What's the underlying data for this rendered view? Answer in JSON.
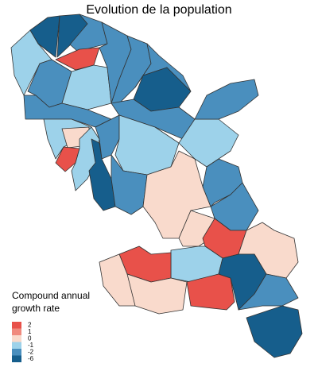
{
  "title": "Evolution de la population",
  "legend": {
    "title": [
      "Compound annual",
      "growth rate"
    ],
    "items": [
      {
        "label": 2,
        "color": "#e8514a"
      },
      {
        "label": 1,
        "color": "#f08a7e"
      },
      {
        "label": 0,
        "color": "#f9dacc"
      },
      {
        "label": -1,
        "color": "#9dd2ea"
      },
      {
        "label": -2,
        "color": "#4a8fbe"
      },
      {
        "label": -6,
        "color": "#165e8c"
      }
    ]
  }
}
